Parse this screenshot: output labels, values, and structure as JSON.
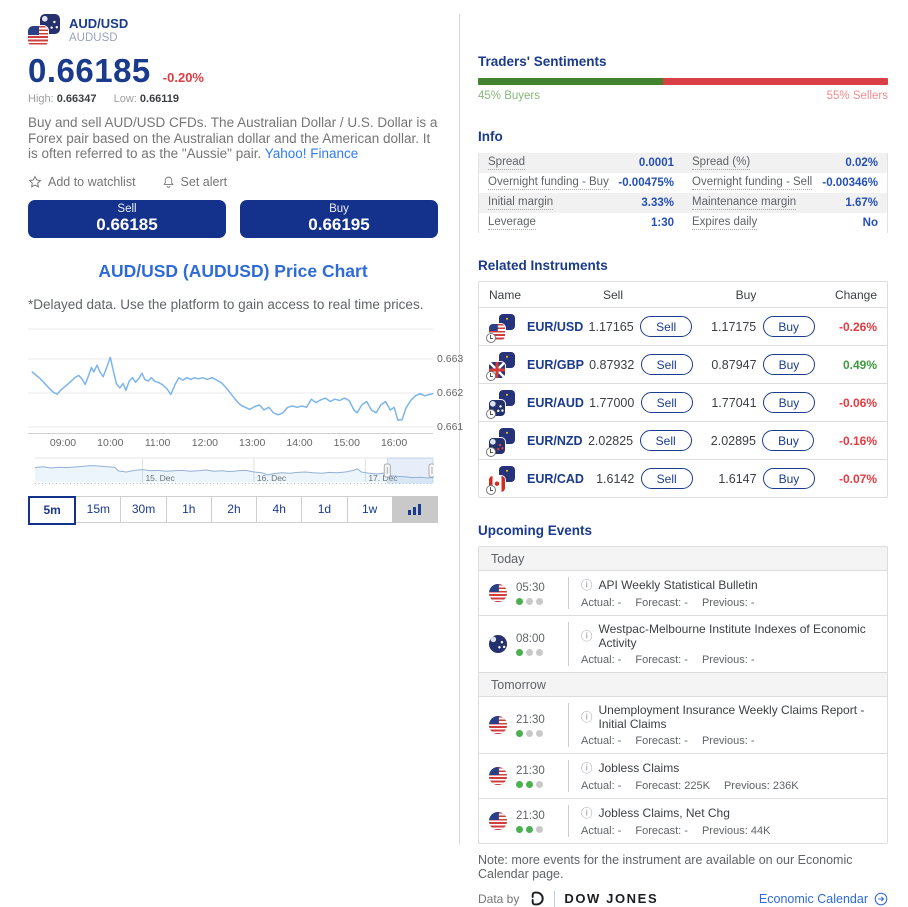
{
  "header": {
    "pair_name": "AUD/USD",
    "symbol": "AUDUSD",
    "price": "0.66185",
    "change": "-0.20%",
    "high_label": "High:",
    "high": "0.66347",
    "low_label": "Low:",
    "low": "0.66119",
    "description": "Buy and sell AUD/USD CFDs. The Australian Dollar / U.S. Dollar is a Forex pair based on the Australian dollar and the American dollar. It is often referred to as the \"Aussie\" pair.",
    "link": "Yahoo! Finance",
    "watchlist": "Add to watchlist",
    "alert": "Set alert",
    "sell_label": "Sell",
    "sell_price": "0.66185",
    "buy_label": "Buy",
    "buy_price": "0.66195",
    "flags": [
      "au-flag",
      "us-flag"
    ]
  },
  "chart": {
    "title": "AUD/USD (AUDUSD) Price Chart",
    "note": "*Delayed data. Use the platform to gain access to real time prices.",
    "timeframes": [
      "5m",
      "15m",
      "30m",
      "1h",
      "2h",
      "4h",
      "1d",
      "1w"
    ],
    "active_timeframe": "5m",
    "chart_type_icon": "bar-chart-icon"
  },
  "chart_data": {
    "type": "line",
    "title": "AUD/USD (AUDUSD) Price Chart",
    "ylabel": "",
    "xlabel": "",
    "y_ticks": [
      0.663,
      0.662,
      0.661
    ],
    "x_ticks": [
      "09:00",
      "10:00",
      "11:00",
      "12:00",
      "13:00",
      "14:00",
      "15:00",
      "16:00"
    ],
    "ylim": [
      0.6609,
      0.6641
    ],
    "grid": true,
    "legend": false,
    "line_color": "#7cb5ec",
    "series": [
      {
        "name": "AUD/USD 5m",
        "points": [
          [
            8.35,
            0.66262
          ],
          [
            8.45,
            0.6625
          ],
          [
            8.52,
            0.66242
          ],
          [
            8.6,
            0.6623
          ],
          [
            8.7,
            0.66215
          ],
          [
            8.8,
            0.66202
          ],
          [
            8.88,
            0.66197
          ],
          [
            8.95,
            0.66208
          ],
          [
            9.05,
            0.6622
          ],
          [
            9.15,
            0.66232
          ],
          [
            9.25,
            0.66245
          ],
          [
            9.33,
            0.66252
          ],
          [
            9.4,
            0.66242
          ],
          [
            9.47,
            0.66225
          ],
          [
            9.53,
            0.66248
          ],
          [
            9.6,
            0.66275
          ],
          [
            9.65,
            0.66262
          ],
          [
            9.72,
            0.66282
          ],
          [
            9.78,
            0.66262
          ],
          [
            9.85,
            0.66248
          ],
          [
            9.93,
            0.66278
          ],
          [
            10.0,
            0.66305
          ],
          [
            10.07,
            0.66262
          ],
          [
            10.13,
            0.66228
          ],
          [
            10.2,
            0.66215
          ],
          [
            10.27,
            0.66228
          ],
          [
            10.33,
            0.66208
          ],
          [
            10.4,
            0.66235
          ],
          [
            10.47,
            0.66245
          ],
          [
            10.53,
            0.66232
          ],
          [
            10.6,
            0.66242
          ],
          [
            10.67,
            0.66258
          ],
          [
            10.73,
            0.6624
          ],
          [
            10.8,
            0.66235
          ],
          [
            10.87,
            0.66245
          ],
          [
            10.93,
            0.66235
          ],
          [
            11.0,
            0.66232
          ],
          [
            11.1,
            0.66225
          ],
          [
            11.2,
            0.66212
          ],
          [
            11.28,
            0.66196
          ],
          [
            11.37,
            0.66225
          ],
          [
            11.45,
            0.66245
          ],
          [
            11.53,
            0.66238
          ],
          [
            11.62,
            0.66245
          ],
          [
            11.7,
            0.6624
          ],
          [
            11.78,
            0.66245
          ],
          [
            11.87,
            0.66242
          ],
          [
            11.95,
            0.66245
          ],
          [
            12.05,
            0.6624
          ],
          [
            12.15,
            0.66245
          ],
          [
            12.25,
            0.66238
          ],
          [
            12.35,
            0.6623
          ],
          [
            12.45,
            0.66215
          ],
          [
            12.55,
            0.66198
          ],
          [
            12.65,
            0.6618
          ],
          [
            12.75,
            0.66165
          ],
          [
            12.85,
            0.66158
          ],
          [
            12.95,
            0.66152
          ],
          [
            13.05,
            0.6616
          ],
          [
            13.15,
            0.66165
          ],
          [
            13.25,
            0.6615
          ],
          [
            13.35,
            0.66158
          ],
          [
            13.45,
            0.66142
          ],
          [
            13.55,
            0.66136
          ],
          [
            13.65,
            0.66142
          ],
          [
            13.75,
            0.66158
          ],
          [
            13.85,
            0.66162
          ],
          [
            13.95,
            0.66158
          ],
          [
            14.05,
            0.66162
          ],
          [
            14.15,
            0.66158
          ],
          [
            14.25,
            0.66182
          ],
          [
            14.35,
            0.66172
          ],
          [
            14.45,
            0.6618
          ],
          [
            14.55,
            0.66185
          ],
          [
            14.65,
            0.66175
          ],
          [
            14.75,
            0.66182
          ],
          [
            14.85,
            0.66178
          ],
          [
            14.95,
            0.66185
          ],
          [
            15.05,
            0.66178
          ],
          [
            15.15,
            0.6615
          ],
          [
            15.22,
            0.66142
          ],
          [
            15.32,
            0.66165
          ],
          [
            15.42,
            0.66175
          ],
          [
            15.52,
            0.6615
          ],
          [
            15.62,
            0.66142
          ],
          [
            15.72,
            0.66165
          ],
          [
            15.82,
            0.66175
          ],
          [
            15.92,
            0.6615
          ],
          [
            16.0,
            0.66158
          ],
          [
            16.08,
            0.6612
          ],
          [
            16.17,
            0.66122
          ],
          [
            16.25,
            0.66155
          ],
          [
            16.35,
            0.66178
          ],
          [
            16.45,
            0.66192
          ],
          [
            16.55,
            0.66198
          ],
          [
            16.65,
            0.66192
          ],
          [
            16.75,
            0.66196
          ],
          [
            16.82,
            0.66198
          ]
        ]
      }
    ],
    "navigator": {
      "dates": [
        "15. Dec",
        "16. Dec",
        "17. Dec"
      ],
      "selection": [
        0.885,
        1.0
      ],
      "points": [
        [
          0,
          0.62
        ],
        [
          0.02,
          0.66
        ],
        [
          0.04,
          0.6
        ],
        [
          0.06,
          0.64
        ],
        [
          0.08,
          0.62
        ],
        [
          0.1,
          0.65
        ],
        [
          0.12,
          0.68
        ],
        [
          0.14,
          0.72
        ],
        [
          0.16,
          0.7
        ],
        [
          0.18,
          0.66
        ],
        [
          0.2,
          0.64
        ],
        [
          0.21,
          0.45
        ],
        [
          0.23,
          0.4
        ],
        [
          0.25,
          0.48
        ],
        [
          0.27,
          0.52
        ],
        [
          0.29,
          0.46
        ],
        [
          0.31,
          0.48
        ],
        [
          0.33,
          0.44
        ],
        [
          0.35,
          0.46
        ],
        [
          0.37,
          0.48
        ],
        [
          0.39,
          0.44
        ],
        [
          0.41,
          0.46
        ],
        [
          0.43,
          0.5
        ],
        [
          0.45,
          0.44
        ],
        [
          0.47,
          0.46
        ],
        [
          0.49,
          0.42
        ],
        [
          0.51,
          0.46
        ],
        [
          0.53,
          0.48
        ],
        [
          0.55,
          0.4
        ],
        [
          0.57,
          0.36
        ],
        [
          0.585,
          0.26
        ],
        [
          0.6,
          0.32
        ],
        [
          0.62,
          0.36
        ],
        [
          0.64,
          0.34
        ],
        [
          0.66,
          0.38
        ],
        [
          0.68,
          0.4
        ],
        [
          0.7,
          0.36
        ],
        [
          0.72,
          0.34
        ],
        [
          0.74,
          0.38
        ],
        [
          0.76,
          0.36
        ],
        [
          0.78,
          0.4
        ],
        [
          0.8,
          0.48
        ],
        [
          0.81,
          0.56
        ],
        [
          0.82,
          0.4
        ],
        [
          0.84,
          0.34
        ],
        [
          0.86,
          0.3
        ],
        [
          0.875,
          0.34
        ],
        [
          0.89,
          0.22
        ],
        [
          0.91,
          0.18
        ],
        [
          0.93,
          0.16
        ],
        [
          0.95,
          0.12
        ],
        [
          0.97,
          0.14
        ],
        [
          0.985,
          0.1
        ],
        [
          1.0,
          0.12
        ]
      ]
    }
  },
  "sentiments": {
    "title": "Traders' Sentiments",
    "buyers_pct": 45,
    "sellers_pct": 55,
    "buyers_label": "45% Buyers",
    "sellers_label": "55% Sellers",
    "buyers_color": "#43832e",
    "sellers_color": "#d94046"
  },
  "info": {
    "title": "Info",
    "rows": [
      [
        {
          "label": "Spread",
          "value": "0.0001"
        },
        {
          "label": "Spread (%)",
          "value": "0.02%"
        }
      ],
      [
        {
          "label": "Overnight funding - Buy",
          "value": "-0.00475%"
        },
        {
          "label": "Overnight funding - Sell",
          "value": "-0.00346%"
        }
      ],
      [
        {
          "label": "Initial margin",
          "value": "3.33%"
        },
        {
          "label": "Maintenance margin",
          "value": "1.67%"
        }
      ],
      [
        {
          "label": "Leverage",
          "value": "1:30"
        },
        {
          "label": "Expires daily",
          "value": "No"
        }
      ]
    ]
  },
  "related": {
    "title": "Related Instruments",
    "headers": {
      "name": "Name",
      "sell": "Sell",
      "buy": "Buy",
      "change": "Change"
    },
    "sell_button": "Sell",
    "buy_button": "Buy",
    "rows": [
      {
        "name": "EUR/USD",
        "flags": [
          "eur-flag",
          "usd-flag"
        ],
        "flag_css": [
          "f-eu",
          "f-us"
        ],
        "sell": "1.17165",
        "buy": "1.17175",
        "change": "-0.26%",
        "dir": "down"
      },
      {
        "name": "EUR/GBP",
        "flags": [
          "eur-flag",
          "gbp-flag"
        ],
        "flag_css": [
          "f-eu",
          "f-gb"
        ],
        "sell": "0.87932",
        "buy": "0.87947",
        "change": "0.49%",
        "dir": "up"
      },
      {
        "name": "EUR/AUD",
        "flags": [
          "eur-flag",
          "aud-flag"
        ],
        "flag_css": [
          "f-eu",
          "f-au"
        ],
        "sell": "1.77000",
        "buy": "1.77041",
        "change": "-0.06%",
        "dir": "down"
      },
      {
        "name": "EUR/NZD",
        "flags": [
          "eur-flag",
          "nzd-flag"
        ],
        "flag_css": [
          "f-eu",
          "f-nz"
        ],
        "sell": "2.02825",
        "buy": "2.02895",
        "change": "-0.16%",
        "dir": "down"
      },
      {
        "name": "EUR/CAD",
        "flags": [
          "eur-flag",
          "cad-flag"
        ],
        "flag_css": [
          "f-eu",
          "f-ca"
        ],
        "sell": "1.6142",
        "buy": "1.6147",
        "change": "-0.07%",
        "dir": "down"
      }
    ]
  },
  "events": {
    "title": "Upcoming Events",
    "labels": {
      "actual": "Actual:",
      "forecast": "Forecast:",
      "previous": "Previous:"
    },
    "groups": [
      {
        "label": "Today",
        "items": [
          {
            "flag": "us-flag",
            "flag_css": "f-us",
            "time": "05:30",
            "importance": 1,
            "title": "API Weekly Statistical Bulletin",
            "actual": "-",
            "forecast": "-",
            "previous": "-"
          },
          {
            "flag": "au-flag",
            "flag_css": "f-au",
            "time": "08:00",
            "importance": 1,
            "title": "Westpac-Melbourne Institute Indexes of Economic Activity",
            "actual": "-",
            "forecast": "-",
            "previous": "-"
          }
        ]
      },
      {
        "label": "Tomorrow",
        "items": [
          {
            "flag": "us-flag",
            "flag_css": "f-us",
            "time": "21:30",
            "importance": 1,
            "title": "Unemployment Insurance Weekly Claims Report - Initial Claims",
            "actual": "-",
            "forecast": "-",
            "previous": "-"
          },
          {
            "flag": "us-flag",
            "flag_css": "f-us",
            "time": "21:30",
            "importance": 2,
            "title": "Jobless Claims",
            "actual": "-",
            "forecast": "225K",
            "previous": "236K"
          },
          {
            "flag": "us-flag",
            "flag_css": "f-us",
            "time": "21:30",
            "importance": 2,
            "title": "Jobless Claims, Net Chg",
            "actual": "-",
            "forecast": "-",
            "previous": "44K"
          }
        ]
      }
    ],
    "note": "Note: more events for the instrument are available on our Economic Calendar page."
  },
  "footer": {
    "data_by": "Data by",
    "provider_logo": "dow-jones-logo",
    "provider": "DOW JONES",
    "calendar_link": "Economic Calendar",
    "calendar_icon": "arrow-circle-icon"
  },
  "colors": {
    "navy": "#1a3a8c",
    "button_navy": "#14328c",
    "accent_blue": "#2e6bd8",
    "red": "#e23b40",
    "green": "#3d9c3f",
    "chart_line": "#7cb5ec"
  }
}
